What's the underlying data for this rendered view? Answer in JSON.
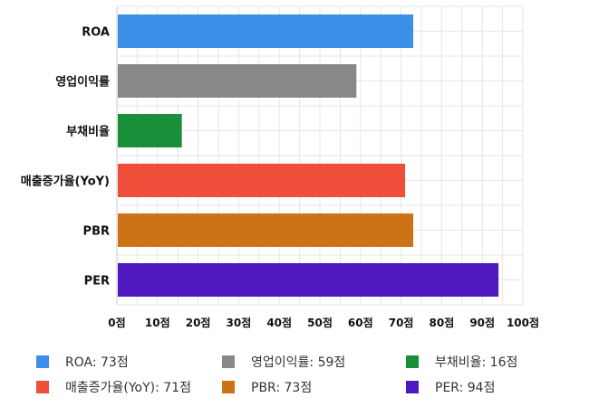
{
  "chart_data": {
    "type": "bar",
    "orientation": "horizontal",
    "categories": [
      "ROA",
      "영업이익률",
      "부채비율",
      "매출증가율(YoY)",
      "PBR",
      "PER"
    ],
    "values": [
      73,
      59,
      16,
      71,
      73,
      94
    ],
    "colors": [
      "#3b8fe8",
      "#888888",
      "#1a8f3a",
      "#ee4e3a",
      "#cc7318",
      "#4e17bf"
    ],
    "xlim": [
      0,
      100
    ],
    "x_ticks": [
      0,
      10,
      20,
      30,
      40,
      50,
      60,
      70,
      80,
      90,
      100
    ],
    "tick_suffix": "점",
    "grid": true,
    "legend_position": "bottom",
    "legend": [
      {
        "label": "ROA: 73점",
        "color": "#3b8fe8"
      },
      {
        "label": "영업이익률: 59점",
        "color": "#888888"
      },
      {
        "label": "부채비율: 16점",
        "color": "#1a8f3a"
      },
      {
        "label": "매출증가율(YoY): 71점",
        "color": "#ee4e3a"
      },
      {
        "label": "PBR: 73점",
        "color": "#cc7318"
      },
      {
        "label": "PER: 94점",
        "color": "#4e17bf"
      }
    ]
  }
}
